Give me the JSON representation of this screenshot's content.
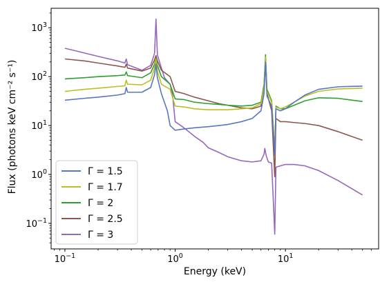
{
  "chart_data": {
    "type": "line",
    "xlabel": "Energy (keV)",
    "ylabel": "Flux (photons keV cm⁻² s⁻¹)",
    "xscale": "log",
    "yscale": "log",
    "xlim": [
      0.075,
      70
    ],
    "ylim": [
      0.03,
      2500
    ],
    "grid": false,
    "legend_position": "lower-left",
    "x_ticks": [
      {
        "value": 0.1,
        "base": "10",
        "exp": "−1"
      },
      {
        "value": 1,
        "base": "10",
        "exp": "0"
      },
      {
        "value": 10,
        "base": "10",
        "exp": "1"
      }
    ],
    "y_ticks": [
      {
        "value": 0.1,
        "base": "10",
        "exp": "−1"
      },
      {
        "value": 1,
        "base": "10",
        "exp": "0"
      },
      {
        "value": 10,
        "base": "10",
        "exp": "1"
      },
      {
        "value": 100,
        "base": "10",
        "exp": "2"
      },
      {
        "value": 1000,
        "base": "10",
        "exp": "3"
      }
    ],
    "series": [
      {
        "name": "Γ = 3",
        "color": "#9467bd",
        "points": [
          [
            0.1,
            380
          ],
          [
            0.13,
            330
          ],
          [
            0.2,
            260
          ],
          [
            0.3,
            210
          ],
          [
            0.35,
            190
          ],
          [
            0.36,
            230
          ],
          [
            0.37,
            175
          ],
          [
            0.5,
            135
          ],
          [
            0.6,
            170
          ],
          [
            0.65,
            300
          ],
          [
            0.67,
            1500
          ],
          [
            0.69,
            280
          ],
          [
            0.75,
            150
          ],
          [
            0.8,
            95
          ],
          [
            0.9,
            70
          ],
          [
            0.95,
            40
          ],
          [
            1.0,
            12
          ],
          [
            1.2,
            9
          ],
          [
            1.5,
            6
          ],
          [
            1.8,
            4.5
          ],
          [
            2.0,
            3.5
          ],
          [
            2.5,
            2.8
          ],
          [
            3.0,
            2.3
          ],
          [
            4.0,
            1.9
          ],
          [
            5.0,
            1.8
          ],
          [
            6.0,
            1.9
          ],
          [
            6.4,
            2.6
          ],
          [
            6.5,
            3.4
          ],
          [
            6.7,
            2.4
          ],
          [
            7.0,
            1.8
          ],
          [
            7.5,
            1.7
          ],
          [
            8.0,
            0.06
          ],
          [
            8.2,
            1.4
          ],
          [
            9.0,
            1.5
          ],
          [
            10,
            1.6
          ],
          [
            12,
            1.6
          ],
          [
            15,
            1.5
          ],
          [
            20,
            1.2
          ],
          [
            30,
            0.75
          ],
          [
            50,
            0.38
          ]
        ]
      },
      {
        "name": "Γ = 2.5",
        "color": "#8c564b",
        "points": [
          [
            0.1,
            230
          ],
          [
            0.15,
            210
          ],
          [
            0.2,
            190
          ],
          [
            0.3,
            165
          ],
          [
            0.35,
            155
          ],
          [
            0.36,
            180
          ],
          [
            0.37,
            150
          ],
          [
            0.5,
            130
          ],
          [
            0.6,
            150
          ],
          [
            0.65,
            220
          ],
          [
            0.67,
            270
          ],
          [
            0.69,
            210
          ],
          [
            0.75,
            135
          ],
          [
            0.9,
            100
          ],
          [
            1.0,
            50
          ],
          [
            1.2,
            45
          ],
          [
            1.5,
            38
          ],
          [
            2.0,
            32
          ],
          [
            2.5,
            28
          ],
          [
            3.0,
            26
          ],
          [
            4.0,
            23
          ],
          [
            5.0,
            22
          ],
          [
            6.0,
            25
          ],
          [
            6.4,
            60
          ],
          [
            6.6,
            240
          ],
          [
            6.8,
            45
          ],
          [
            7.5,
            20
          ],
          [
            8.0,
            0.9
          ],
          [
            8.2,
            14
          ],
          [
            9,
            12
          ],
          [
            10,
            12
          ],
          [
            12,
            11.5
          ],
          [
            15,
            11
          ],
          [
            20,
            10
          ],
          [
            30,
            7.5
          ],
          [
            50,
            5
          ]
        ]
      },
      {
        "name": "Γ = 2",
        "color": "#2ca02c",
        "points": [
          [
            0.1,
            90
          ],
          [
            0.15,
            95
          ],
          [
            0.2,
            100
          ],
          [
            0.3,
            105
          ],
          [
            0.35,
            108
          ],
          [
            0.36,
            125
          ],
          [
            0.37,
            105
          ],
          [
            0.5,
            95
          ],
          [
            0.6,
            120
          ],
          [
            0.65,
            180
          ],
          [
            0.67,
            240
          ],
          [
            0.69,
            170
          ],
          [
            0.75,
            100
          ],
          [
            0.9,
            70
          ],
          [
            1.0,
            35
          ],
          [
            1.2,
            34
          ],
          [
            1.5,
            30
          ],
          [
            2.0,
            28
          ],
          [
            2.5,
            27
          ],
          [
            3.0,
            26
          ],
          [
            4.0,
            25
          ],
          [
            5.0,
            26
          ],
          [
            6.0,
            30
          ],
          [
            6.4,
            70
          ],
          [
            6.6,
            280
          ],
          [
            6.8,
            55
          ],
          [
            7.5,
            32
          ],
          [
            8.0,
            3
          ],
          [
            8.2,
            25
          ],
          [
            9,
            22
          ],
          [
            10,
            22
          ],
          [
            12,
            26
          ],
          [
            15,
            32
          ],
          [
            20,
            37
          ],
          [
            30,
            36
          ],
          [
            50,
            31
          ]
        ]
      },
      {
        "name": "Γ = 1.7",
        "color": "#bcbd22",
        "points": [
          [
            0.1,
            50
          ],
          [
            0.15,
            55
          ],
          [
            0.2,
            58
          ],
          [
            0.3,
            63
          ],
          [
            0.35,
            65
          ],
          [
            0.36,
            85
          ],
          [
            0.37,
            70
          ],
          [
            0.5,
            68
          ],
          [
            0.6,
            85
          ],
          [
            0.65,
            150
          ],
          [
            0.67,
            230
          ],
          [
            0.69,
            130
          ],
          [
            0.75,
            70
          ],
          [
            0.9,
            55
          ],
          [
            1.0,
            25
          ],
          [
            1.2,
            24
          ],
          [
            1.5,
            22
          ],
          [
            2.0,
            21
          ],
          [
            2.5,
            21
          ],
          [
            3.0,
            21
          ],
          [
            4.0,
            22
          ],
          [
            5.0,
            23
          ],
          [
            6.0,
            28
          ],
          [
            6.4,
            60
          ],
          [
            6.6,
            250
          ],
          [
            6.8,
            50
          ],
          [
            7.5,
            30
          ],
          [
            8.0,
            3
          ],
          [
            8.2,
            24
          ],
          [
            9,
            22
          ],
          [
            10,
            24
          ],
          [
            12,
            30
          ],
          [
            15,
            40
          ],
          [
            20,
            50
          ],
          [
            30,
            56
          ],
          [
            50,
            58
          ]
        ]
      },
      {
        "name": "Γ = 1.5",
        "color": "#5875c1",
        "points": [
          [
            0.1,
            33
          ],
          [
            0.15,
            36
          ],
          [
            0.2,
            38
          ],
          [
            0.3,
            42
          ],
          [
            0.35,
            45
          ],
          [
            0.36,
            60
          ],
          [
            0.37,
            48
          ],
          [
            0.5,
            48
          ],
          [
            0.6,
            60
          ],
          [
            0.65,
            110
          ],
          [
            0.67,
            180
          ],
          [
            0.69,
            95
          ],
          [
            0.75,
            45
          ],
          [
            0.85,
            20
          ],
          [
            0.9,
            10
          ],
          [
            1.0,
            8
          ],
          [
            1.2,
            8.5
          ],
          [
            1.5,
            9
          ],
          [
            2.0,
            9.5
          ],
          [
            2.5,
            10
          ],
          [
            3.0,
            10.5
          ],
          [
            4.0,
            12
          ],
          [
            5.0,
            14
          ],
          [
            6.0,
            20
          ],
          [
            6.4,
            45
          ],
          [
            6.6,
            200
          ],
          [
            6.8,
            40
          ],
          [
            7.5,
            25
          ],
          [
            8.0,
            2.5
          ],
          [
            8.2,
            22
          ],
          [
            9,
            20
          ],
          [
            10,
            22
          ],
          [
            12,
            30
          ],
          [
            15,
            42
          ],
          [
            20,
            55
          ],
          [
            30,
            62
          ],
          [
            50,
            64
          ]
        ]
      }
    ]
  }
}
